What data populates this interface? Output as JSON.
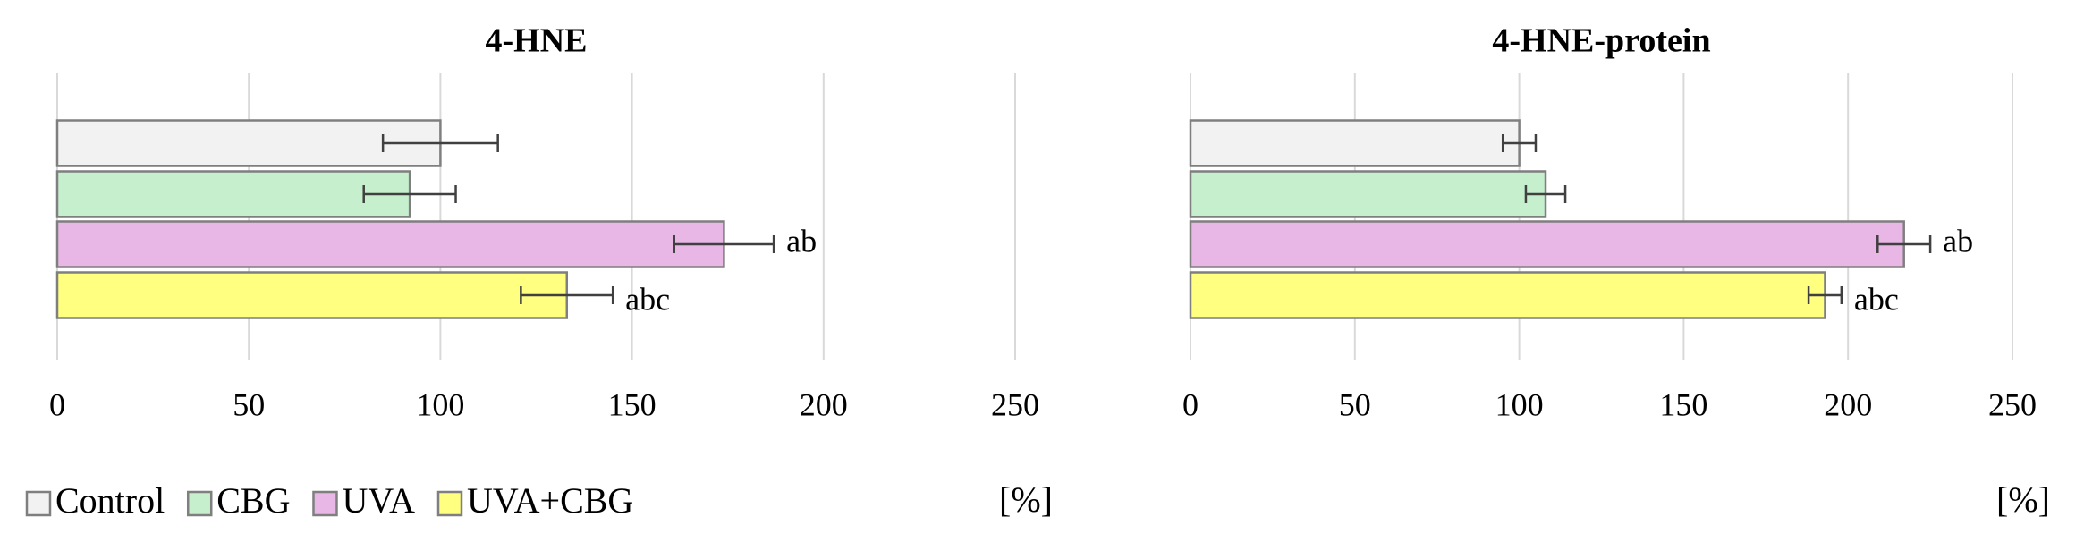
{
  "legend": {
    "names": [
      "Control",
      "CBG",
      "UVA",
      "UVA+CBG"
    ],
    "colors": [
      "#f2f2f2",
      "#c6efce",
      "#e9b7e6",
      "#ffff80"
    ]
  },
  "chart_data": [
    {
      "type": "bar",
      "orientation": "horizontal",
      "title": "4-HNE",
      "x_label": "[%]",
      "values": [
        100,
        92,
        174,
        133
      ],
      "errors": [
        15,
        12,
        13,
        12
      ],
      "annotations": [
        null,
        null,
        "ab",
        "abc"
      ],
      "xlim": [
        0,
        250
      ],
      "xticks": [
        0,
        50,
        100,
        150,
        200,
        250
      ],
      "grid": true
    },
    {
      "type": "bar",
      "orientation": "horizontal",
      "title": "4-HNE-protein",
      "x_label": "[%]",
      "values": [
        100,
        108,
        217,
        193
      ],
      "errors": [
        5,
        6,
        8,
        5
      ],
      "annotations": [
        null,
        null,
        "ab",
        "abc"
      ],
      "xlim": [
        0,
        250
      ],
      "xticks": [
        0,
        50,
        100,
        150,
        200,
        250
      ],
      "grid": true
    }
  ]
}
